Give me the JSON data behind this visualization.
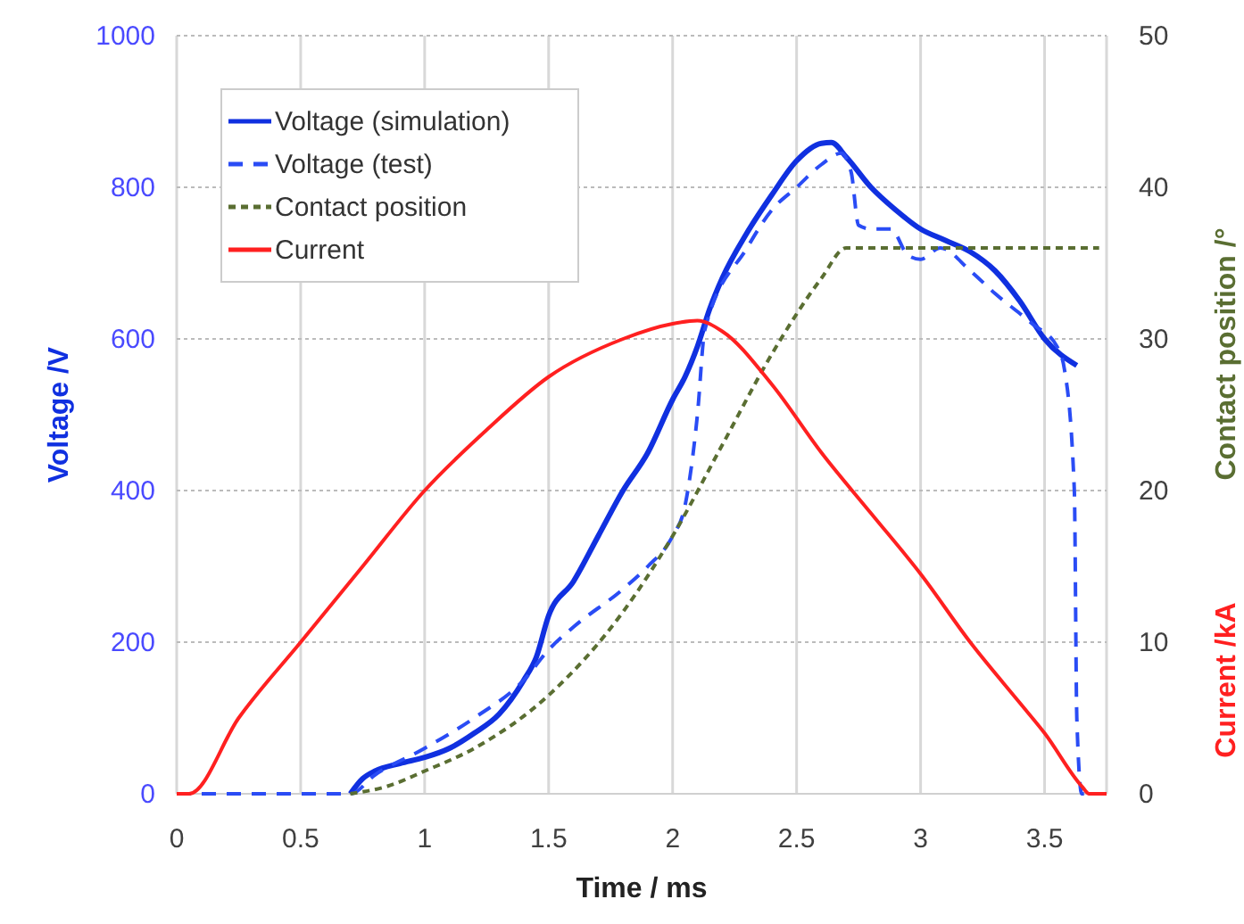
{
  "chart_data": {
    "type": "line",
    "xlabel": "Time / ms",
    "ylabel": "Voltage /V",
    "y2label": "Contact position /°",
    "y3label": "Current /kA",
    "xlim": [
      0,
      3.75
    ],
    "xticks": [
      0,
      0.5,
      1,
      1.5,
      2,
      2.5,
      3,
      3.5
    ],
    "ylim": [
      0,
      1000
    ],
    "yticks": [
      0,
      200,
      400,
      600,
      800,
      1000
    ],
    "y2lim": [
      0,
      50
    ],
    "y2ticks": [
      0,
      10,
      20,
      30,
      40,
      50
    ],
    "grid": true,
    "legend": "top left",
    "series": [
      {
        "name": "Voltage (simulation)",
        "color": "#1030e0",
        "line_style": "solid",
        "x": [
          0.7,
          0.75,
          0.8,
          0.9,
          1.0,
          1.1,
          1.2,
          1.3,
          1.4,
          1.45,
          1.5,
          1.6,
          1.7,
          1.8,
          1.9,
          2.0,
          2.05,
          2.1,
          2.15,
          2.2,
          2.3,
          2.4,
          2.5,
          2.6,
          2.64,
          2.7,
          2.8,
          2.9,
          3.0,
          3.1,
          3.2,
          3.3,
          3.4,
          3.5,
          3.63
        ],
        "values": [
          0,
          20,
          30,
          40,
          48,
          60,
          80,
          105,
          150,
          180,
          235,
          280,
          340,
          400,
          450,
          520,
          550,
          590,
          640,
          680,
          740,
          790,
          835,
          858,
          859,
          840,
          800,
          770,
          745,
          730,
          715,
          690,
          650,
          600,
          565
        ]
      },
      {
        "name": "Voltage (test)",
        "color": "#2a4cf5",
        "line_style": "dashed",
        "x": [
          0,
          0.7,
          0.8,
          1.0,
          1.2,
          1.4,
          1.5,
          1.6,
          1.8,
          1.9,
          2.0,
          2.05,
          2.1,
          2.13,
          2.3,
          2.4,
          2.5,
          2.6,
          2.68,
          2.72,
          2.75,
          2.8,
          2.88,
          2.95,
          3.0,
          3.08,
          3.2,
          3.3,
          3.45,
          3.55,
          3.58,
          3.62,
          3.63,
          3.65,
          3.75
        ],
        "values": [
          0,
          0,
          25,
          60,
          100,
          150,
          190,
          220,
          270,
          300,
          340,
          380,
          500,
          612,
          720,
          770,
          800,
          830,
          845,
          820,
          750,
          745,
          745,
          710,
          705,
          720,
          690,
          660,
          620,
          590,
          560,
          400,
          100,
          0,
          0
        ]
      },
      {
        "name": "Contact position",
        "color": "#5a6e32",
        "line_style": "dotted",
        "axis": "y2",
        "x": [
          0.7,
          0.85,
          1.0,
          1.2,
          1.5,
          1.8,
          2.0,
          2.2,
          2.4,
          2.6,
          2.7,
          3.72
        ],
        "values": [
          0,
          0.5,
          1.5,
          3,
          6.5,
          12,
          17,
          23,
          29,
          34,
          36,
          36
        ]
      },
      {
        "name": "Current",
        "color": "#ff2020",
        "line_style": "solid",
        "axis": "y2",
        "x": [
          0,
          0.05,
          0.25,
          0.5,
          0.75,
          1.0,
          1.25,
          1.5,
          1.8,
          2.0,
          2.1,
          2.2,
          2.4,
          2.6,
          2.8,
          3.0,
          3.2,
          3.4,
          3.5,
          3.65,
          3.68,
          3.75
        ],
        "values": [
          0,
          0,
          5,
          10,
          15,
          20,
          24,
          27.5,
          30,
          31,
          31.2,
          30.5,
          27,
          22.5,
          18.5,
          14.5,
          10,
          6,
          4,
          0.5,
          0,
          0
        ]
      }
    ]
  }
}
